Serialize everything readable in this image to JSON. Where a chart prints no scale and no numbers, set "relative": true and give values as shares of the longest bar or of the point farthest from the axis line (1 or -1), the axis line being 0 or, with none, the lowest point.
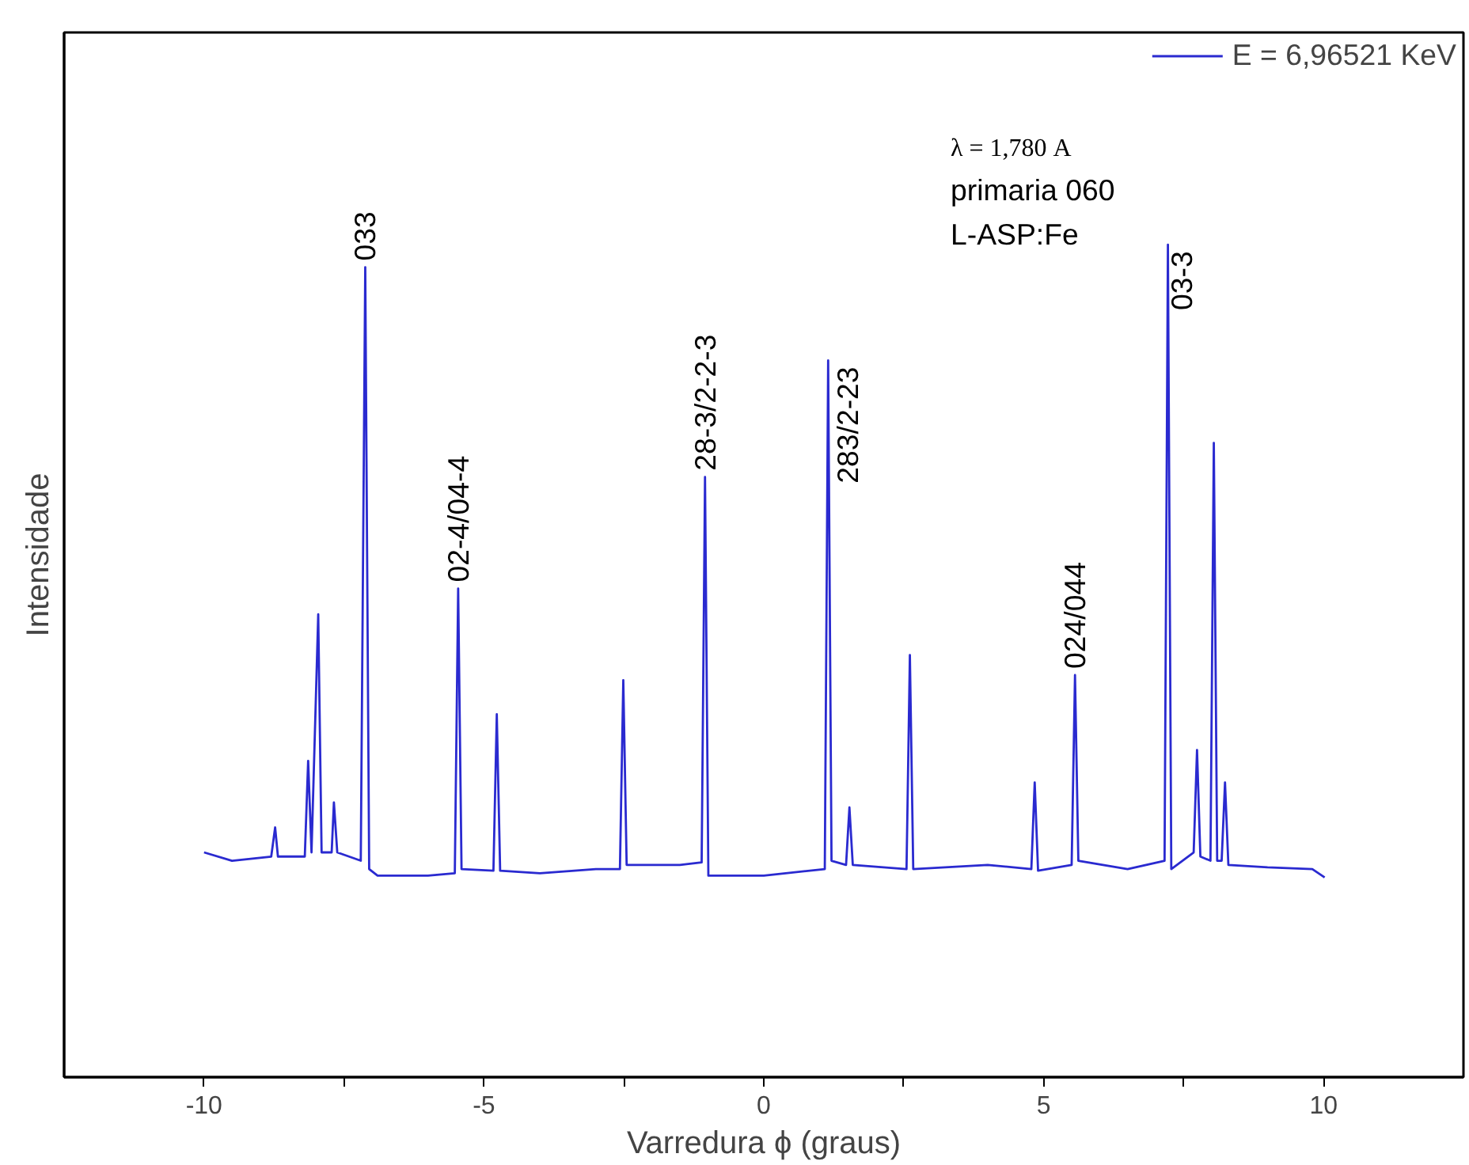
{
  "chart_data": {
    "type": "line",
    "relative": true,
    "xlabel": "Varredura ϕ (graus)",
    "ylabel": "Intensidade",
    "xlim": [
      -12.5,
      12.5
    ],
    "xticks": [
      -10,
      {
        "value": -7.5,
        "label": null
      },
      -5,
      {
        "value": -2.5,
        "label": null
      },
      0,
      {
        "value": 2.5,
        "label": null
      },
      5,
      {
        "value": 7.5,
        "label": null
      },
      10
    ],
    "grid": false,
    "legend": "top right",
    "marker": "none",
    "line_style": "solid",
    "series": [
      {
        "name": "E = 6,96521 KeV",
        "color": "#2a2ad0",
        "x": [
          -10.0,
          -9.5,
          -8.8,
          -8.73,
          -8.68,
          -8.2,
          -8.14,
          -8.08,
          -7.96,
          -7.9,
          -7.72,
          -7.68,
          -7.62,
          -7.2,
          -7.12,
          -7.05,
          -6.9,
          -6.0,
          -5.52,
          -5.46,
          -5.4,
          -4.83,
          -4.77,
          -4.71,
          -4.0,
          -3.0,
          -2.57,
          -2.51,
          -2.45,
          -1.5,
          -1.11,
          -1.05,
          -0.99,
          0.0,
          1.09,
          1.15,
          1.21,
          1.47,
          1.53,
          1.59,
          2.55,
          2.61,
          2.67,
          4.0,
          4.78,
          4.84,
          4.9,
          5.5,
          5.56,
          5.62,
          6.5,
          7.16,
          7.22,
          7.28,
          7.68,
          7.74,
          7.8,
          7.98,
          8.04,
          8.1,
          8.18,
          8.24,
          8.3,
          9.0,
          9.8,
          10.02
        ],
        "values": [
          0.27,
          0.26,
          0.265,
          0.3,
          0.265,
          0.265,
          0.38,
          0.27,
          0.556,
          0.27,
          0.27,
          0.33,
          0.27,
          0.26,
          0.973,
          0.25,
          0.242,
          0.242,
          0.245,
          0.587,
          0.25,
          0.248,
          0.436,
          0.248,
          0.245,
          0.25,
          0.25,
          0.477,
          0.255,
          0.255,
          0.258,
          0.721,
          0.242,
          0.242,
          0.25,
          0.861,
          0.26,
          0.255,
          0.324,
          0.255,
          0.25,
          0.507,
          0.25,
          0.255,
          0.25,
          0.354,
          0.248,
          0.255,
          0.483,
          0.26,
          0.25,
          0.26,
          1.0,
          0.25,
          0.27,
          0.393,
          0.265,
          0.26,
          0.762,
          0.26,
          0.26,
          0.354,
          0.255,
          0.252,
          0.25,
          0.24
        ]
      }
    ],
    "annotations": [
      "λ = 1,780 A",
      "primaria 060",
      "L-ASP:Fe",
      {
        "text": "033",
        "x": -7.12,
        "y": 0.973
      },
      {
        "text": "02-4/04-4",
        "x": -5.46,
        "y": 0.587
      },
      {
        "text": "28-3/2-2-3",
        "x": -1.05,
        "y": 0.721
      },
      {
        "text": "283/2-23",
        "x": 1.15,
        "y": 0.861
      },
      {
        "text": "024/044",
        "x": 5.56,
        "y": 0.483
      },
      {
        "text": "03-3",
        "x": 7.22,
        "y": 1.0
      }
    ]
  }
}
